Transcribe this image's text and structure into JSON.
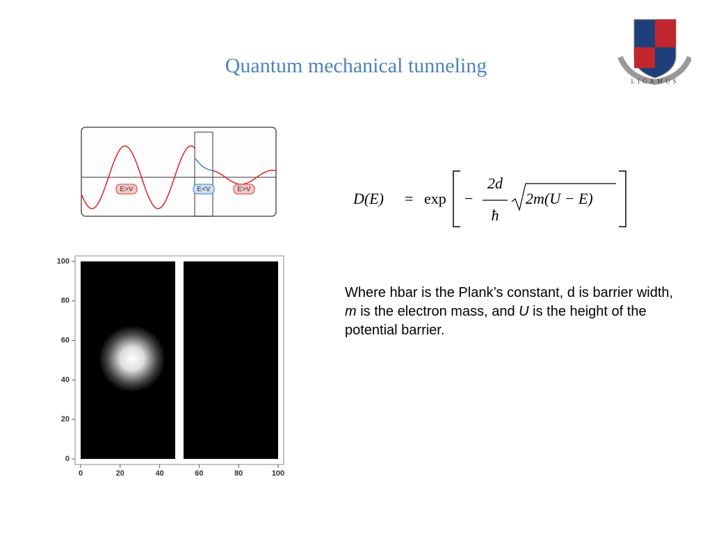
{
  "header": {
    "title": "Quantum mechanical tunneling",
    "logo_motto": "LIGAMUS"
  },
  "diagram": {
    "labels": [
      "E>V",
      "E<V",
      "E>V"
    ]
  },
  "formula": {
    "lhs": "D(E)",
    "equals": "=",
    "func": "exp",
    "minus": "−",
    "numerator": "2d",
    "denominator": "ħ",
    "radicand": "2m(U − E)"
  },
  "description": {
    "segments": [
      {
        "text": "Where hbar is the Plank’s constant, d is barrier width, ",
        "italic": false
      },
      {
        "text": "m",
        "italic": true
      },
      {
        "text": " is the electron mass, and ",
        "italic": false
      },
      {
        "text": "U",
        "italic": true
      },
      {
        "text": " is the height of the potential barrier.",
        "italic": false
      }
    ]
  },
  "density_plot": {
    "xticks": [
      "0",
      "20",
      "40",
      "60",
      "80",
      "100"
    ],
    "yticks": [
      "100",
      "80",
      "60",
      "40",
      "20",
      "0"
    ]
  }
}
